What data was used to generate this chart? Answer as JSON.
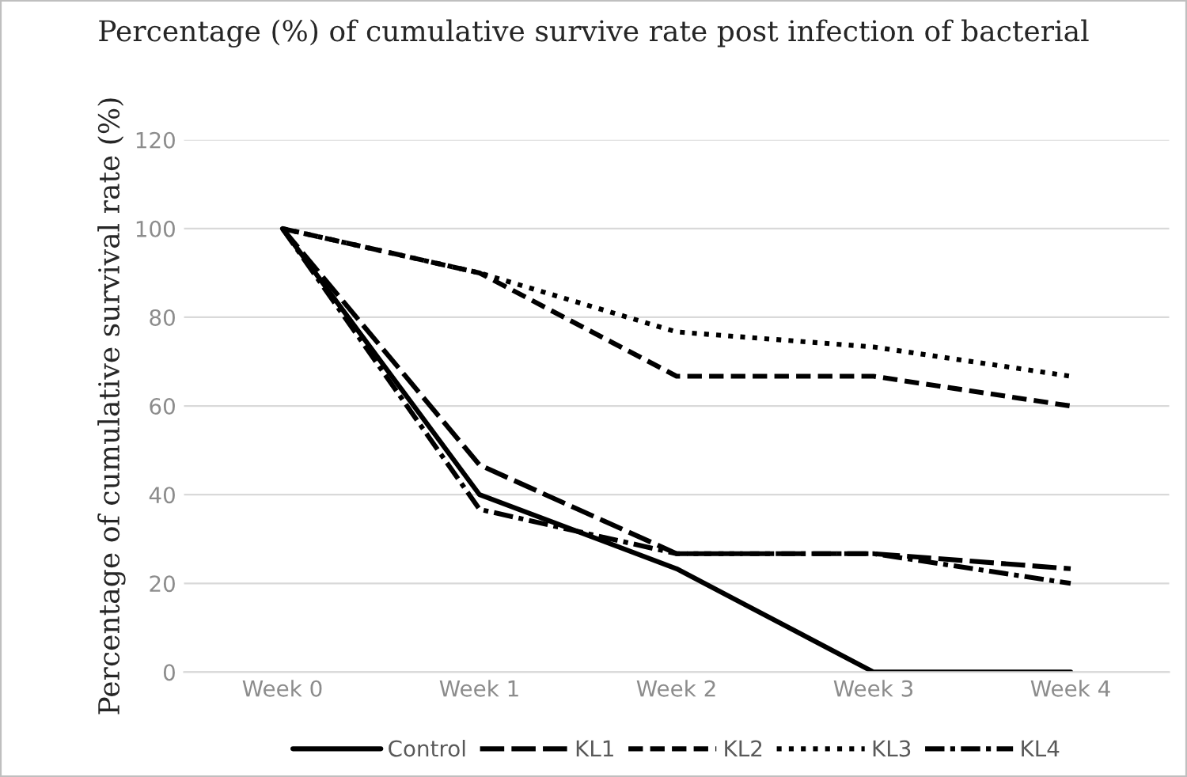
{
  "chart_data": {
    "type": "line",
    "title": "Percentage (%) of cumulative survive rate post infection of bacterial",
    "ylabel": "Percentage of cumulative survival rate (%)",
    "categories": [
      "Week 0",
      "Week 1",
      "Week 2",
      "Week 3",
      "Week 4"
    ],
    "series": [
      {
        "name": "Control",
        "color": "#000000",
        "line_style": "solid",
        "values": [
          100,
          40,
          23.3,
          0,
          0
        ]
      },
      {
        "name": "KL1",
        "color": "#000000",
        "line_style": "long_dashed",
        "values": [
          100,
          46.7,
          26.7,
          26.7,
          23.3
        ]
      },
      {
        "name": "KL2",
        "color": "#000000",
        "line_style": "dashed",
        "values": [
          100,
          90,
          66.7,
          66.7,
          60
        ]
      },
      {
        "name": "KL3",
        "color": "#000000",
        "line_style": "dotted",
        "values": [
          100,
          90,
          76.7,
          73.3,
          66.7
        ]
      },
      {
        "name": "KL4",
        "color": "#000000",
        "line_style": "dash_dot",
        "values": [
          100,
          36.7,
          26.7,
          26.7,
          20
        ]
      }
    ],
    "ylim": [
      0,
      120
    ],
    "yticks": [
      0,
      20,
      40,
      60,
      80,
      100,
      120
    ],
    "grid": "y",
    "legend": "bottom"
  }
}
